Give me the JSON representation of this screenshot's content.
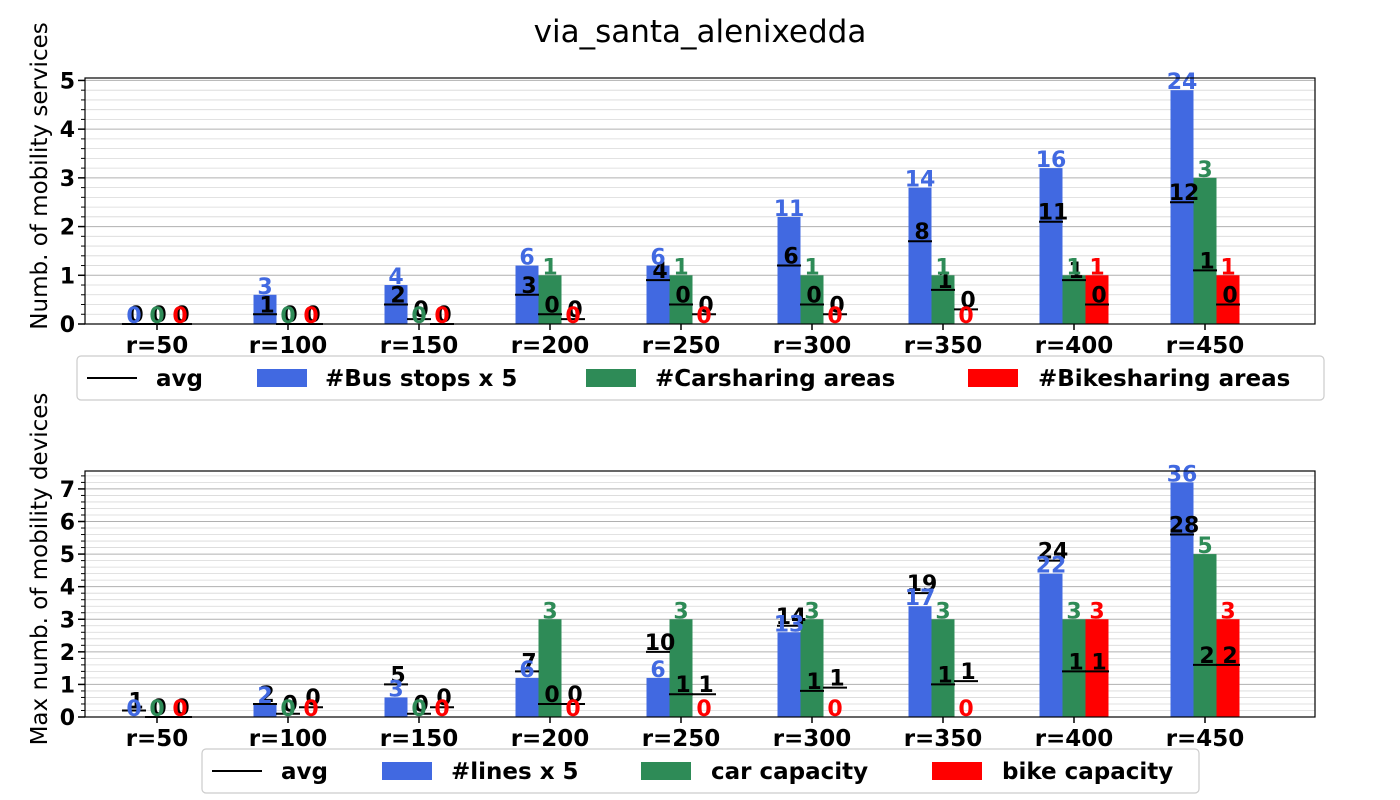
{
  "title": "via_santa_alenixedda",
  "colors": {
    "blue": "#4169e1",
    "green": "#2e8b57",
    "red": "#ff0000",
    "black": "#000000"
  },
  "chart_data": [
    {
      "type": "bar",
      "ylabel": "Numb. of mobility services",
      "categories": [
        "r=50",
        "r=100",
        "r=150",
        "r=200",
        "r=250",
        "r=300",
        "r=350",
        "r=400",
        "r=450"
      ],
      "ylim": [
        0,
        5.05
      ],
      "yticks": [
        "0",
        "1",
        "2",
        "3",
        "4",
        "5"
      ],
      "grid": true,
      "series": [
        {
          "name": "#Bus stops x 5",
          "color": "#4169e1",
          "values": [
            0,
            0.6,
            0.8,
            1.2,
            1.2,
            2.2,
            2.8,
            3.2,
            4.8
          ],
          "labels": [
            "0",
            "3",
            "4",
            "6",
            "6",
            "11",
            "14",
            "16",
            "24"
          ]
        },
        {
          "name": "#Carsharing areas",
          "color": "#2e8b57",
          "values": [
            0,
            0,
            0,
            1,
            1,
            1,
            1,
            1,
            3
          ],
          "labels": [
            "0",
            "0",
            "0",
            "1",
            "1",
            "1",
            "1",
            "1",
            "3"
          ]
        },
        {
          "name": "#Bikesharing areas",
          "color": "#ff0000",
          "values": [
            0,
            0,
            0,
            0,
            0,
            0,
            0,
            1,
            1
          ],
          "labels": [
            "0",
            "0",
            "0",
            "0",
            "0",
            "0",
            "0",
            "1",
            "1"
          ]
        }
      ],
      "avg": {
        "name": "avg",
        "values": [
          [
            0,
            0,
            0
          ],
          [
            0.2,
            0,
            0
          ],
          [
            0.4,
            0.1,
            0
          ],
          [
            0.6,
            0.2,
            0.1
          ],
          [
            0.9,
            0.4,
            0.2
          ],
          [
            1.2,
            0.4,
            0.2
          ],
          [
            1.7,
            0.7,
            0.3
          ],
          [
            2.1,
            0.9,
            0.4
          ],
          [
            2.5,
            1.1,
            0.4
          ]
        ],
        "labels": [
          [
            "0",
            "0",
            "0"
          ],
          [
            "1",
            "0",
            "0"
          ],
          [
            "2",
            "0",
            "0"
          ],
          [
            "3",
            "0",
            "0"
          ],
          [
            "4",
            "0",
            "0"
          ],
          [
            "6",
            "0",
            "0"
          ],
          [
            "8",
            "1",
            "0"
          ],
          [
            "11",
            "1",
            "0"
          ],
          [
            "12",
            "1",
            "0"
          ]
        ]
      },
      "legend": {
        "placement": "below",
        "items": [
          "avg",
          "#Bus stops x 5",
          "#Carsharing areas",
          "#Bikesharing areas"
        ]
      }
    },
    {
      "type": "bar",
      "ylabel": "Max numb. of mobility devices",
      "categories": [
        "r=50",
        "r=100",
        "r=150",
        "r=200",
        "r=250",
        "r=300",
        "r=350",
        "r=400",
        "r=450"
      ],
      "ylim": [
        0,
        7.55
      ],
      "yticks": [
        "0",
        "1",
        "2",
        "3",
        "4",
        "5",
        "6",
        "7"
      ],
      "grid": true,
      "series": [
        {
          "name": "#lines x 5",
          "color": "#4169e1",
          "values": [
            0,
            0.4,
            0.6,
            1.2,
            1.2,
            2.6,
            3.4,
            4.4,
            7.2
          ],
          "labels": [
            "0",
            "2",
            "3",
            "6",
            "6",
            "13",
            "17",
            "22",
            "36"
          ]
        },
        {
          "name": "car capacity",
          "color": "#2e8b57",
          "values": [
            0,
            0,
            0,
            3,
            3,
            3,
            3,
            3,
            5
          ],
          "labels": [
            "0",
            "0",
            "0",
            "3",
            "3",
            "3",
            "3",
            "3",
            "5"
          ]
        },
        {
          "name": "bike capacity",
          "color": "#ff0000",
          "values": [
            0,
            0,
            0,
            0,
            0,
            0,
            0,
            3,
            3
          ],
          "labels": [
            "0",
            "0",
            "0",
            "0",
            "0",
            "0",
            "0",
            "3",
            "3"
          ]
        }
      ],
      "avg": {
        "name": "avg",
        "values": [
          [
            0.2,
            0,
            0
          ],
          [
            0.4,
            0.1,
            0.3
          ],
          [
            1.0,
            0.1,
            0.3
          ],
          [
            1.4,
            0.4,
            0.4
          ],
          [
            2.0,
            0.7,
            0.7
          ],
          [
            2.8,
            0.8,
            0.9
          ],
          [
            3.8,
            1.0,
            1.1
          ],
          [
            4.8,
            1.4,
            1.4
          ],
          [
            5.6,
            1.6,
            1.6
          ]
        ],
        "labels": [
          [
            "1",
            "0",
            "0"
          ],
          [
            "2",
            "0",
            "0"
          ],
          [
            "5",
            "0",
            "0"
          ],
          [
            "7",
            "0",
            "0"
          ],
          [
            "10",
            "1",
            "1"
          ],
          [
            "14",
            "1",
            "1"
          ],
          [
            "19",
            "1",
            "1"
          ],
          [
            "24",
            "1",
            "1"
          ],
          [
            "28",
            "2",
            "2"
          ]
        ]
      },
      "legend": {
        "placement": "below",
        "items": [
          "avg",
          "#lines x 5",
          "car capacity",
          "bike capacity"
        ]
      }
    }
  ]
}
